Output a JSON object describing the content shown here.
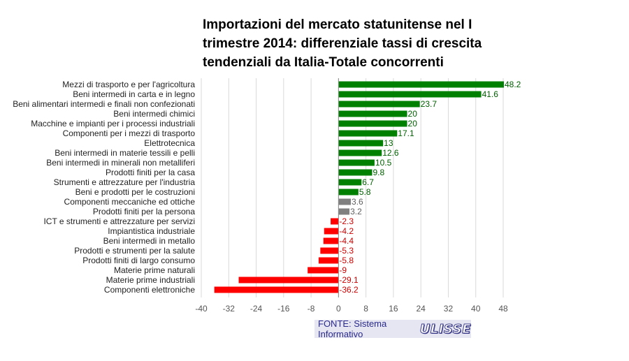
{
  "chart_data": {
    "type": "bar",
    "orientation": "horizontal",
    "title": "Importazioni del mercato statunitense nel I\ntrimestre 2014: differenziale tassi di crescita\ntendenziali da Italia-Totale concorrenti",
    "xlim": [
      -40,
      48
    ],
    "xticks": [
      "-40",
      "-32",
      "-24",
      "-16",
      "-8",
      "0",
      "8",
      "16",
      "24",
      "32",
      "40",
      "48"
    ],
    "grid": "vertical",
    "legend": "none",
    "categories": [
      "Mezzi di trasporto e per l'agricoltura",
      "Beni intermedi in carta e in legno",
      "Beni alimentari intermedi e finali non confezionati",
      "Beni intermedi chimici",
      "Macchine e impianti per i processi industriali",
      "Componenti per i mezzi di trasporto",
      "Elettrotecnica",
      "Beni intermedi in materie tessili e pelli",
      "Beni intermedi in minerali non metalliferi",
      "Prodotti finiti per la casa",
      "Strumenti e attrezzature per l'industria",
      "Beni e prodotti per le costruzioni",
      "Componenti meccaniche ed ottiche",
      "Prodotti finiti per la persona",
      "ICT e strumenti e attrezzature per servizi",
      "Impiantistica industriale",
      "Beni intermedi in metallo",
      "Prodotti e strumenti per la salute",
      "Prodotti finiti di largo consumo",
      "Materie prime naturali",
      "Materie prime industriali",
      "Componenti elettroniche"
    ],
    "values": [
      48.2,
      41.6,
      23.7,
      20,
      20,
      17.1,
      13,
      12.6,
      10.5,
      9.8,
      6.7,
      5.8,
      3.6,
      3.2,
      -2.3,
      -4.2,
      -4.4,
      -5.3,
      -5.8,
      -9,
      -29.1,
      -36.2
    ],
    "value_labels": [
      "48.2",
      "41.6",
      "23.7",
      "20",
      "20",
      "17.1",
      "13",
      "12.6",
      "10.5",
      "9.8",
      "6.7",
      "5.8",
      "3.6",
      "3.2",
      "-2.3",
      "-4.2",
      "-4.4",
      "-5.3",
      "-5.8",
      "-9",
      "-29.1",
      "-36.2"
    ],
    "bar_colors": [
      "#008000",
      "#008000",
      "#008000",
      "#008000",
      "#008000",
      "#008000",
      "#008000",
      "#008000",
      "#008000",
      "#008000",
      "#008000",
      "#008000",
      "#808080",
      "#808080",
      "#ff0000",
      "#ff0000",
      "#ff0000",
      "#ff0000",
      "#ff0000",
      "#ff0000",
      "#ff0000",
      "#ff0000"
    ],
    "label_colors": [
      "#006000",
      "#006000",
      "#006000",
      "#006000",
      "#006000",
      "#006000",
      "#006000",
      "#006000",
      "#006000",
      "#006000",
      "#006000",
      "#006000",
      "#606060",
      "#606060",
      "#cc0000",
      "#cc0000",
      "#cc0000",
      "#cc0000",
      "#cc0000",
      "#cc0000",
      "#cc0000",
      "#cc0000"
    ]
  },
  "source": {
    "text": "FONTE: Sistema Informativo",
    "logo": "ULISSE",
    "background": "#e6e6f2"
  }
}
